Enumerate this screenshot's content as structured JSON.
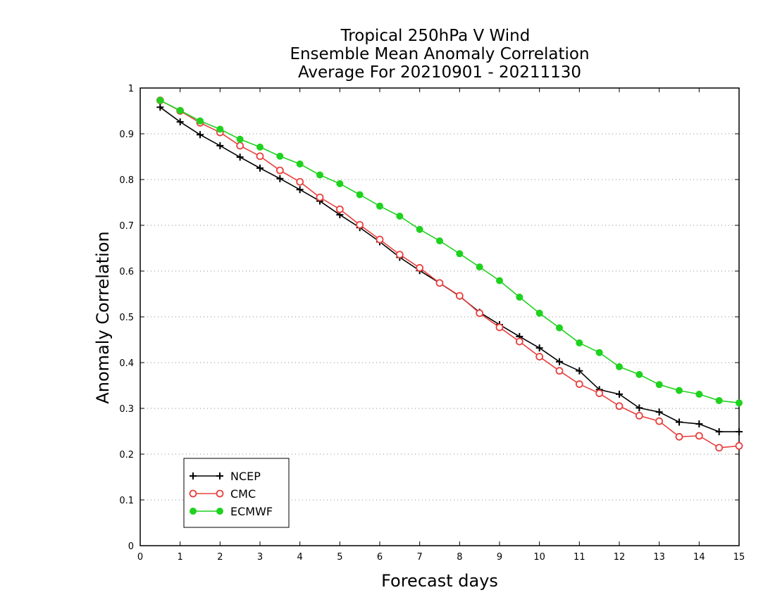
{
  "chart_data": {
    "type": "line",
    "title_lines": [
      "Tropical 250hPa V Wind",
      "Ensemble Mean Anomaly Correlation",
      "Average For 20210901 - 20211130"
    ],
    "xlabel": "Forecast days",
    "ylabel": "Anomaly Correlation",
    "xlim": [
      0,
      15
    ],
    "ylim": [
      0,
      1
    ],
    "x_ticks": [
      "0",
      "1",
      "2",
      "3",
      "4",
      "5",
      "6",
      "7",
      "8",
      "9",
      "10",
      "11",
      "12",
      "13",
      "14",
      "15"
    ],
    "y_ticks": [
      "0",
      "0.1",
      "0.2",
      "0.3",
      "0.4",
      "0.5",
      "0.6",
      "0.7",
      "0.8",
      "0.9",
      "1"
    ],
    "grid": "horizontal-dotted",
    "legend_position": "bottom-left",
    "x": [
      0.5,
      1,
      1.5,
      2,
      2.5,
      3,
      3.5,
      4,
      4.5,
      5,
      5.5,
      6,
      6.5,
      7,
      7.5,
      8,
      8.5,
      9,
      9.5,
      10,
      10.5,
      11,
      11.5,
      12,
      12.5,
      13,
      13.5,
      14,
      14.5,
      15
    ],
    "series": [
      {
        "name": "NCEP",
        "color": "#000000",
        "marker": "plus",
        "values": [
          0.958,
          0.926,
          0.898,
          0.874,
          0.849,
          0.825,
          0.802,
          0.778,
          0.753,
          0.723,
          0.695,
          0.664,
          0.63,
          0.601,
          0.574,
          0.545,
          0.51,
          0.483,
          0.457,
          0.432,
          0.402,
          0.382,
          0.341,
          0.331,
          0.301,
          0.292,
          0.27,
          0.266,
          0.249,
          0.249
        ]
      },
      {
        "name": "CMC",
        "color": "#e8403e",
        "marker": "open-circle",
        "values": [
          0.973,
          0.95,
          0.924,
          0.903,
          0.874,
          0.851,
          0.82,
          0.795,
          0.761,
          0.735,
          0.701,
          0.669,
          0.636,
          0.607,
          0.574,
          0.546,
          0.508,
          0.477,
          0.446,
          0.413,
          0.382,
          0.353,
          0.333,
          0.305,
          0.284,
          0.272,
          0.238,
          0.24,
          0.214,
          0.218
        ]
      },
      {
        "name": "ECMWF",
        "color": "#1fd21f",
        "marker": "filled-circle",
        "values": [
          0.973,
          0.951,
          0.928,
          0.91,
          0.888,
          0.871,
          0.851,
          0.834,
          0.81,
          0.791,
          0.767,
          0.742,
          0.72,
          0.691,
          0.666,
          0.638,
          0.609,
          0.579,
          0.543,
          0.508,
          0.476,
          0.443,
          0.422,
          0.391,
          0.374,
          0.352,
          0.339,
          0.331,
          0.317,
          0.312
        ]
      }
    ]
  }
}
